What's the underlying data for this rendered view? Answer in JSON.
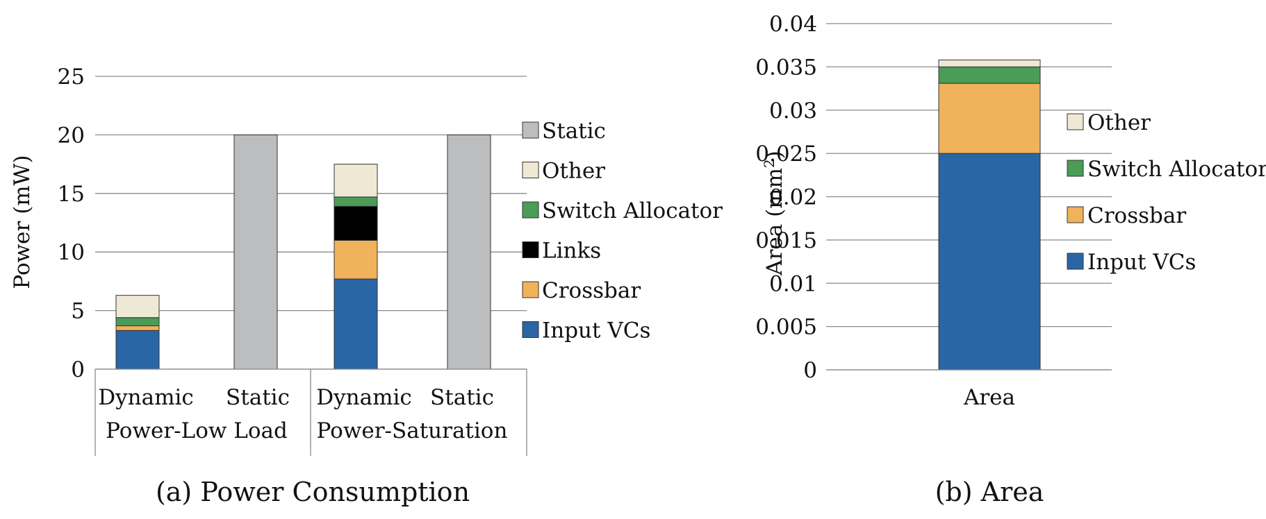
{
  "colors": {
    "Input VCs": "#2a65a6",
    "Crossbar": "#f0b25b",
    "Links": "#000000",
    "Switch Allocator": "#4a9c57",
    "Other": "#efe8d5",
    "Static": "#bcbdbf"
  },
  "chart_data": [
    {
      "type": "bar",
      "stacked": true,
      "caption": "(a) Power Consumption",
      "ylabel": "Power (mW)",
      "ylim": [
        0,
        25
      ],
      "yticks": [
        "0",
        "5",
        "10",
        "15",
        "20",
        "25"
      ],
      "categories": [
        "Dynamic",
        "Static",
        "Dynamic",
        "Static"
      ],
      "groups": [
        "Power-Low Load",
        "Power-Saturation"
      ],
      "series": [
        {
          "name": "Input VCs",
          "values": [
            3.3,
            0,
            7.7,
            0
          ]
        },
        {
          "name": "Crossbar",
          "values": [
            0.4,
            0,
            3.3,
            0
          ]
        },
        {
          "name": "Links",
          "values": [
            0,
            0,
            2.9,
            0
          ]
        },
        {
          "name": "Switch Allocator",
          "values": [
            0.7,
            0,
            0.8,
            0
          ]
        },
        {
          "name": "Other",
          "values": [
            1.9,
            0,
            2.8,
            0
          ]
        },
        {
          "name": "Static",
          "values": [
            0,
            20.0,
            0,
            20.0
          ]
        }
      ],
      "legend": [
        "Static",
        "Other",
        "Switch Allocator",
        "Links",
        "Crossbar",
        "Input VCs"
      ],
      "legend_position": "right",
      "grid": true
    },
    {
      "type": "bar",
      "stacked": true,
      "caption": "(b) Area",
      "ylabel_main": "Area (mm",
      "ylabel_sup": "2",
      "ylabel_end": ")",
      "ylim": [
        0,
        0.04
      ],
      "yticks": [
        "0",
        "0.005",
        "0.01",
        "0.015",
        "0.02",
        "0.025",
        "0.03",
        "0.035",
        "0.04"
      ],
      "categories": [
        "Area"
      ],
      "series": [
        {
          "name": "Input VCs",
          "values": [
            0.025
          ]
        },
        {
          "name": "Crossbar",
          "values": [
            0.0081
          ]
        },
        {
          "name": "Switch Allocator",
          "values": [
            0.0019
          ]
        },
        {
          "name": "Other",
          "values": [
            0.0008
          ]
        }
      ],
      "legend": [
        "Other",
        "Switch Allocator",
        "Crossbar",
        "Input VCs"
      ],
      "legend_position": "right",
      "grid": true
    }
  ]
}
